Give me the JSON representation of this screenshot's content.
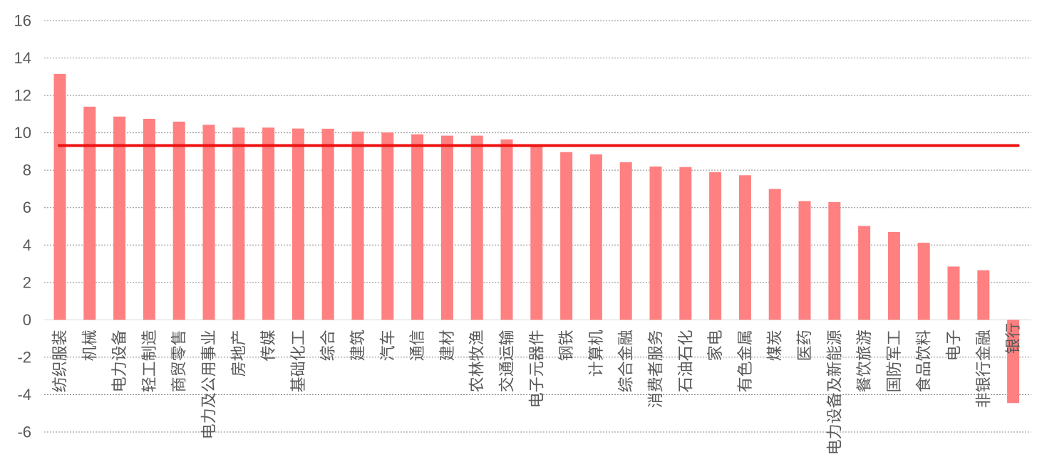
{
  "colors": {
    "bar": "#ff8080",
    "average_line": "#ee1111",
    "text": "#595959",
    "grid": "#8c8c8c"
  },
  "chart_data": {
    "type": "bar",
    "title": "",
    "xlabel": "",
    "ylabel": "",
    "ylim": [
      -6,
      16
    ],
    "y_ticks": [
      16,
      14,
      12,
      10,
      8,
      6,
      4,
      2,
      0,
      -2,
      -4,
      -6
    ],
    "grid": "horizontal dashed",
    "legend": "none",
    "categories": [
      "纺织服装",
      "机械",
      "电力设备",
      "轻工制造",
      "商贸零售",
      "电力及公用事业",
      "房地产",
      "传媒",
      "基础化工",
      "综合",
      "建筑",
      "汽车",
      "通信",
      "建材",
      "农林牧渔",
      "交通运输",
      "电子元器件",
      "钢铁",
      "计算机",
      "综合金融",
      "消费者服务",
      "石油石化",
      "家电",
      "有色金属",
      "煤炭",
      "医药",
      "电力设备及新能源",
      "餐饮旅游",
      "国防军工",
      "食品饮料",
      "电子",
      "非银行金融",
      "银行"
    ],
    "values": [
      13.15,
      11.4,
      10.87,
      10.75,
      10.6,
      10.43,
      10.28,
      10.28,
      10.23,
      10.22,
      10.07,
      10.02,
      9.92,
      9.85,
      9.85,
      9.65,
      9.35,
      8.97,
      8.85,
      8.43,
      8.2,
      8.17,
      7.9,
      7.73,
      7.0,
      6.35,
      6.3,
      5.02,
      4.7,
      4.12,
      2.85,
      2.65,
      -4.45
    ],
    "reference_line": {
      "value": 9.32
    }
  }
}
